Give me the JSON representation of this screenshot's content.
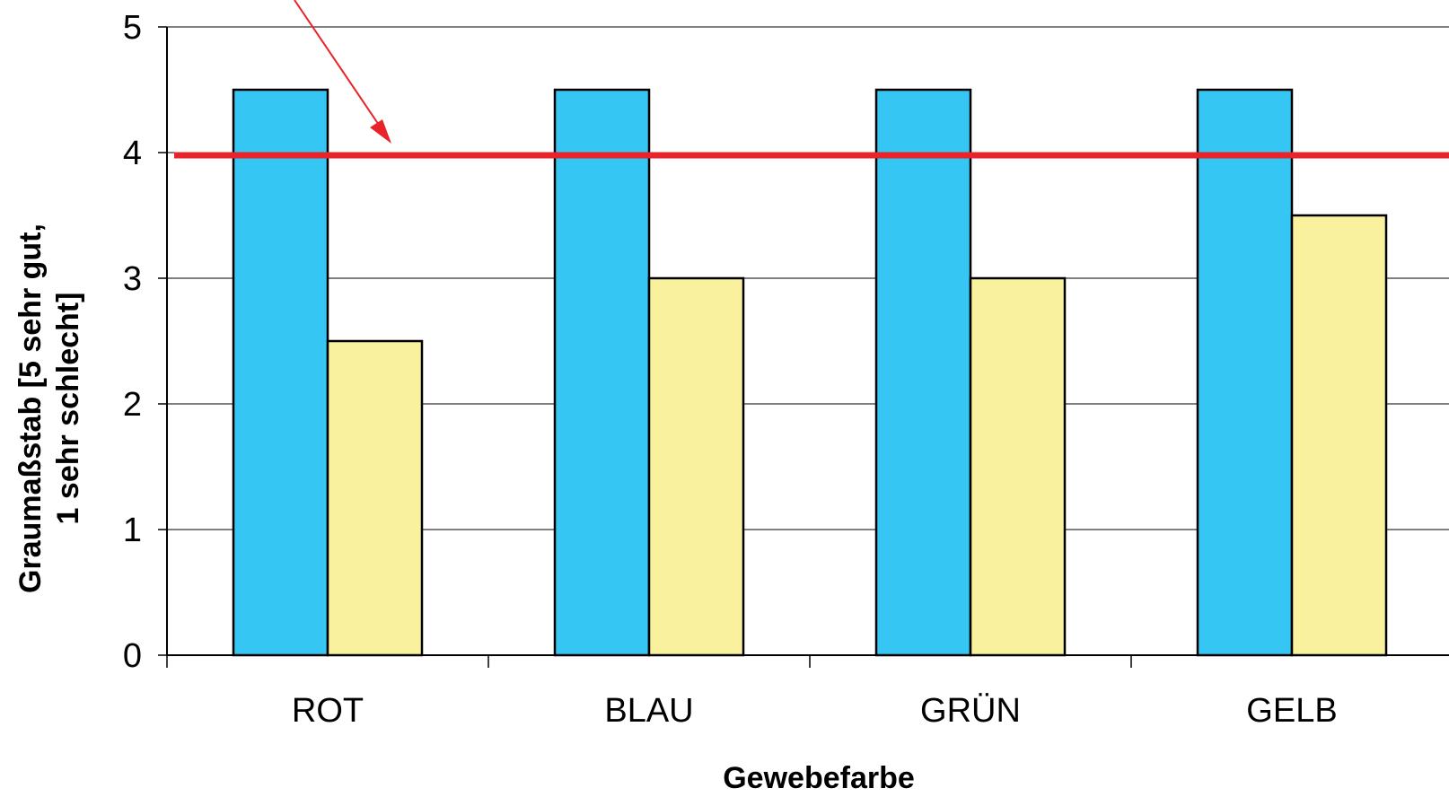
{
  "chart_data": {
    "type": "bar",
    "categories": [
      "ROT",
      "BLAU",
      "GRÜN",
      "GELB"
    ],
    "series": [
      {
        "color": "#35C6F4",
        "values": [
          4.5,
          4.5,
          4.5,
          4.5
        ]
      },
      {
        "color": "#F9F19E",
        "values": [
          2.5,
          3.0,
          3.0,
          3.5
        ]
      }
    ],
    "reference_line": {
      "value": 4,
      "color": "#E8232A"
    },
    "annotation_arrow": {
      "color": "#E8232A"
    },
    "xlabel": "Gewebefarbe",
    "ylabel_line1": "Graumaßstab [5 sehr gut,",
    "ylabel_line2": "1 sehr schlecht]",
    "ylim": [
      0,
      5
    ],
    "yticks": [
      0,
      1,
      2,
      3,
      4,
      5
    ],
    "grid": true,
    "colors": {
      "axis": "#000000",
      "grid": "#000000",
      "bar_stroke": "#000000"
    }
  }
}
